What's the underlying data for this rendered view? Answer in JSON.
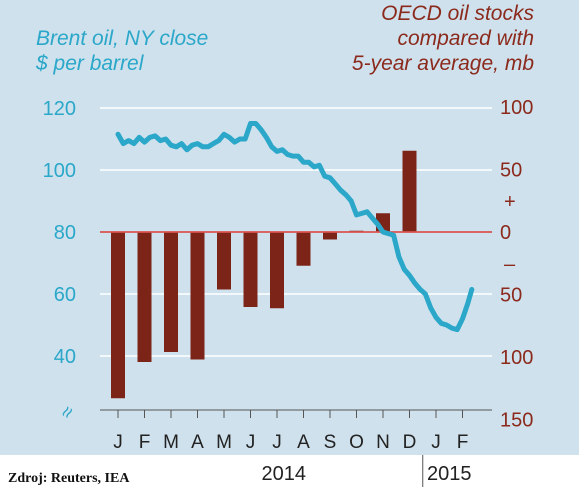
{
  "chart_data": {
    "type": "bar+line",
    "left_axis": {
      "title_lines": [
        "Brent oil, NY close",
        "$ per barrel"
      ],
      "ticks": [
        120,
        100,
        80,
        60,
        40
      ],
      "range": [
        20,
        126
      ],
      "break_symbol": "≈"
    },
    "right_axis": {
      "title_lines": [
        "OECD oil stocks",
        "compared with",
        "5-year average, mb"
      ],
      "ticks": [
        100,
        50,
        0,
        50,
        100,
        150
      ],
      "tick_values": [
        100,
        50,
        0,
        -50,
        -100,
        -150
      ],
      "plus_label": "+",
      "minus_label": "–"
    },
    "x_axis": {
      "months": [
        "J",
        "F",
        "M",
        "A",
        "M",
        "J",
        "J",
        "A",
        "S",
        "O",
        "N",
        "D",
        "J",
        "F"
      ],
      "years": [
        {
          "label": "2014",
          "start": 0,
          "end": 11
        },
        {
          "label": "2015",
          "start": 12,
          "end": 13
        }
      ]
    },
    "bars": {
      "name": "OECD oil stocks",
      "color": "#7d2418",
      "month_positions": [
        0,
        1,
        2,
        3,
        4,
        5,
        6,
        7,
        8,
        9,
        10,
        11
      ],
      "values": [
        -133,
        -104,
        -96,
        -102,
        -46,
        -60,
        -61,
        -27,
        -6,
        1,
        15,
        65
      ]
    },
    "line": {
      "name": "Brent oil",
      "color": "#2aa7c9",
      "points": [
        [
          0.0,
          111.5
        ],
        [
          0.2,
          108.5
        ],
        [
          0.4,
          109.5
        ],
        [
          0.6,
          108.5
        ],
        [
          0.8,
          110.5
        ],
        [
          1.0,
          109.0
        ],
        [
          1.2,
          110.5
        ],
        [
          1.4,
          111.0
        ],
        [
          1.6,
          109.5
        ],
        [
          1.8,
          110.0
        ],
        [
          2.0,
          108.0
        ],
        [
          2.2,
          107.5
        ],
        [
          2.4,
          108.5
        ],
        [
          2.6,
          106.5
        ],
        [
          2.8,
          108.0
        ],
        [
          3.0,
          108.5
        ],
        [
          3.2,
          107.5
        ],
        [
          3.4,
          107.5
        ],
        [
          3.6,
          108.5
        ],
        [
          3.8,
          109.5
        ],
        [
          4.0,
          111.5
        ],
        [
          4.2,
          110.5
        ],
        [
          4.4,
          109.0
        ],
        [
          4.6,
          110.0
        ],
        [
          4.8,
          110.0
        ],
        [
          5.0,
          115.0
        ],
        [
          5.2,
          115.0
        ],
        [
          5.4,
          113.0
        ],
        [
          5.6,
          110.5
        ],
        [
          5.8,
          107.5
        ],
        [
          6.0,
          106.0
        ],
        [
          6.2,
          106.5
        ],
        [
          6.4,
          105.0
        ],
        [
          6.6,
          104.5
        ],
        [
          6.8,
          104.5
        ],
        [
          7.0,
          102.5
        ],
        [
          7.2,
          102.5
        ],
        [
          7.4,
          101.0
        ],
        [
          7.6,
          101.5
        ],
        [
          7.8,
          98.0
        ],
        [
          8.0,
          97.5
        ],
        [
          8.2,
          95.5
        ],
        [
          8.4,
          93.5
        ],
        [
          8.6,
          92.0
        ],
        [
          8.8,
          90.0
        ],
        [
          9.0,
          85.5
        ],
        [
          9.2,
          86.0
        ],
        [
          9.4,
          86.5
        ],
        [
          9.6,
          84.5
        ],
        [
          9.8,
          82.5
        ],
        [
          10.0,
          80.0
        ],
        [
          10.2,
          79.5
        ],
        [
          10.4,
          79.0
        ],
        [
          10.6,
          72.0
        ],
        [
          10.8,
          68.0
        ],
        [
          11.0,
          66.0
        ],
        [
          11.2,
          63.5
        ],
        [
          11.4,
          61.5
        ],
        [
          11.6,
          60.0
        ],
        [
          11.8,
          55.5
        ],
        [
          12.0,
          52.5
        ],
        [
          12.2,
          50.5
        ],
        [
          12.4,
          50.0
        ],
        [
          12.6,
          49.0
        ],
        [
          12.8,
          48.5
        ],
        [
          13.0,
          52.0
        ],
        [
          13.2,
          57.0
        ],
        [
          13.35,
          61.5
        ]
      ]
    },
    "zero_line_color": "#d9534f"
  },
  "source": "Zdroj: Reuters, IEA",
  "colors": {
    "background": "#cfe1ec",
    "blue": "#2aa7c9",
    "bar": "#7d2418",
    "right_text": "#8b2a1c",
    "zero_line": "#d9534f"
  }
}
